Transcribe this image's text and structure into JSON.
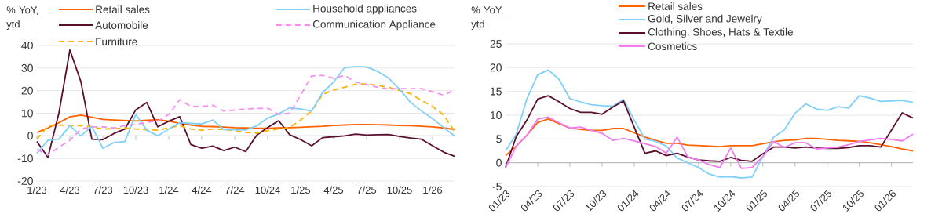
{
  "chart_data": [
    {
      "type": "line",
      "ylabel": "% YoY, ytd",
      "categories": [
        "1/23",
        null,
        null,
        "4/23",
        null,
        null,
        "7/23",
        null,
        null,
        "10/23",
        null,
        null,
        "1/24",
        null,
        null,
        "4/24",
        null,
        null,
        "7/24",
        null,
        null,
        "10/24",
        null,
        null,
        "1/25",
        null,
        null,
        "4/25",
        null,
        null,
        "7/25",
        null,
        null,
        "10/25",
        null,
        null,
        "1/26",
        null,
        null
      ],
      "ylim": [
        -20,
        40
      ],
      "yticks": [
        -20,
        -10,
        0,
        10,
        20,
        30,
        40
      ],
      "grid": "y",
      "legend": "top",
      "series": [
        {
          "name": "Retail sales",
          "color": "#ff6200",
          "line_style": "solid",
          "values": [
            1.5,
            3.5,
            5.8,
            8.4,
            9.2,
            8.2,
            7.3,
            7.0,
            6.8,
            6.6,
            6.9,
            7.2,
            6.5,
            5.5,
            4.8,
            4.2,
            4.1,
            3.9,
            3.6,
            3.5,
            3.4,
            3.4,
            3.5,
            3.6,
            3.8,
            4.0,
            4.2,
            4.6,
            4.8,
            5.0,
            5.0,
            4.9,
            4.8,
            4.6,
            4.5,
            4.2,
            4.0,
            3.5,
            2.8
          ]
        },
        {
          "name": "Automobile",
          "color": "#5a0f2e",
          "line_style": "solid",
          "values": [
            -2.5,
            -9.5,
            10,
            38,
            24,
            -1.5,
            -1.7,
            1,
            3,
            11.5,
            14.8,
            4,
            6.5,
            8.5,
            -3.8,
            -5.5,
            -4.5,
            -6.5,
            -5,
            -7,
            0.3,
            3.7,
            6.7,
            0.5,
            -1.7,
            -4.4,
            -0.8,
            -0.4,
            0,
            0.8,
            0.3,
            0.5,
            0.6,
            -0.3,
            -1,
            -1.5,
            -4.4,
            -7.2,
            -9
          ]
        },
        {
          "name": "Furniture",
          "color": "#ffb000",
          "line_style": "dashed",
          "values": [
            -1.5,
            4.5,
            4.8,
            4.5,
            4.5,
            4,
            3,
            3.2,
            3.5,
            3,
            2.7,
            2.5,
            3.5,
            4.5,
            3,
            2.5,
            3,
            2.8,
            2.3,
            1.5,
            1.2,
            2.3,
            3.1,
            3.7,
            7,
            11,
            18.3,
            20.3,
            21.5,
            22.9,
            23,
            22.3,
            21.5,
            20.1,
            18.6,
            15.7,
            13,
            9.3,
            2
          ]
        },
        {
          "name": "Household appliances",
          "color": "#80d0f8",
          "line_style": "solid",
          "values": [
            -7.7,
            -2,
            -1.5,
            4.5,
            0,
            4.2,
            -5.5,
            -3,
            -2.5,
            9.5,
            2.5,
            0,
            3,
            5.8,
            5.5,
            5.3,
            7,
            2.8,
            2.7,
            2.6,
            4.4,
            7.9,
            9.7,
            12.4,
            11.9,
            11,
            19.2,
            23.8,
            30.2,
            30.7,
            30.5,
            28.5,
            25.6,
            20.6,
            14.8,
            11,
            7.6,
            3.7,
            0
          ]
        },
        {
          "name": "Communication Appliance",
          "color": "#f590f0",
          "line_style": "dashed",
          "values": [
            -6,
            -8.5,
            -5,
            -2,
            3,
            4,
            4,
            3.5,
            4.5,
            5,
            6,
            6.5,
            9.5,
            16,
            13,
            13,
            13.5,
            11,
            11.4,
            11.9,
            12.1,
            12.2,
            9.5,
            10,
            18,
            26.5,
            26.8,
            25.5,
            26.7,
            23.8,
            22.7,
            21.5,
            20.7,
            20.9,
            20.9,
            20.9,
            19.5,
            18,
            20.3
          ]
        }
      ]
    },
    {
      "type": "line",
      "ylabel": "% YoY, ytd",
      "categories": [
        "01/23",
        null,
        null,
        "04/23",
        null,
        null,
        "07/23",
        null,
        null,
        "10/23",
        null,
        null,
        "01/24",
        null,
        null,
        "04/24",
        null,
        null,
        "07/24",
        null,
        null,
        "10/24",
        null,
        null,
        "01/25",
        null,
        null,
        "04/25",
        null,
        null,
        "07/25",
        null,
        null,
        "10/25",
        null,
        null,
        "01/26",
        null,
        null
      ],
      "ylim": [
        -5,
        25
      ],
      "yticks": [
        -5,
        0,
        5,
        10,
        15,
        20,
        25
      ],
      "grid": "y",
      "legend": "top",
      "series": [
        {
          "name": "Retail sales",
          "color": "#ff6200",
          "line_style": "solid",
          "values": [
            1.5,
            3.5,
            5.8,
            8.5,
            9.2,
            8.2,
            7.3,
            7.0,
            6.8,
            6.8,
            7.2,
            7.2,
            6.3,
            5.4,
            4.7,
            4.1,
            4.1,
            3.7,
            3.6,
            3.5,
            3.4,
            3.6,
            3.6,
            3.6,
            4.0,
            4.4,
            4.7,
            4.8,
            5.1,
            5.1,
            4.9,
            4.7,
            4.6,
            4.5,
            4.2,
            3.8,
            3.4,
            2.9,
            2.5
          ]
        },
        {
          "name": "Gold, Silver and Jewelry",
          "color": "#80d0f8",
          "line_style": "solid",
          "values": [
            2.5,
            6,
            13.5,
            18.5,
            19.5,
            17.5,
            13.5,
            12.8,
            12.2,
            12,
            11.9,
            13.3,
            9,
            5,
            4.5,
            3.5,
            1,
            0,
            -1,
            -2.4,
            -3,
            -2.9,
            -3.2,
            -3,
            1.3,
            5.4,
            6.9,
            10.4,
            12.4,
            11.3,
            11,
            11.8,
            11.5,
            14.1,
            13.6,
            12.9,
            13,
            13.1,
            12.7
          ]
        },
        {
          "name": "Clothing, Shoes, Hats & Textile",
          "color": "#5a0f2e",
          "line_style": "solid",
          "values": [
            -1,
            5.5,
            9,
            13.4,
            14.1,
            12.8,
            11.4,
            10.6,
            10.6,
            10.2,
            11.7,
            13,
            7.5,
            2,
            2.5,
            1.5,
            2,
            1.2,
            0.6,
            0.4,
            0.3,
            1.1,
            0.5,
            0.3,
            1.9,
            3.3,
            3.3,
            3.1,
            3.3,
            3.1,
            3.0,
            3.0,
            3.2,
            3.6,
            3.6,
            3.3,
            6.9,
            10.5,
            9.4
          ]
        },
        {
          "name": "Cosmetics",
          "color": "#f07cf0",
          "line_style": "solid",
          "values": [
            -1,
            3.5,
            5.8,
            9.2,
            9.6,
            8.4,
            7.3,
            7.5,
            6.8,
            6.2,
            4.7,
            5.1,
            4.6,
            4,
            3.4,
            2,
            5.4,
            1.2,
            0.6,
            -0.4,
            -1,
            3.1,
            -1.2,
            -1,
            1.3,
            4.5,
            3.2,
            4.2,
            4.2,
            2.9,
            3.1,
            3.3,
            3.8,
            4.5,
            4.8,
            5.1,
            4.9,
            4.6,
            6.0
          ]
        }
      ]
    }
  ]
}
